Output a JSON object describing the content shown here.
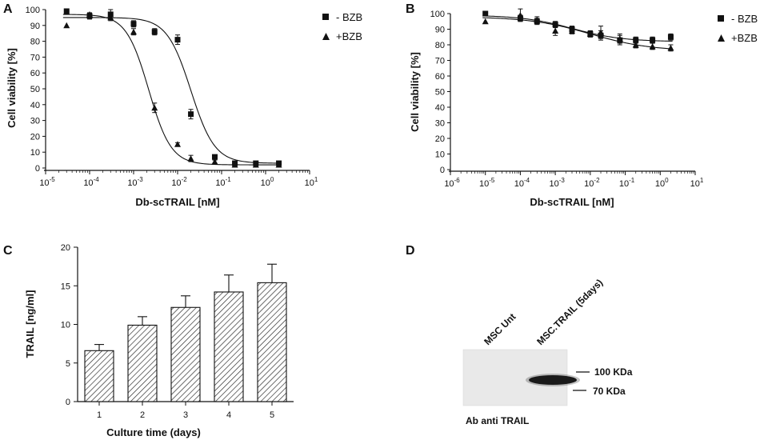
{
  "panels": {
    "A": {
      "letter": "A"
    },
    "B": {
      "letter": "B"
    },
    "C": {
      "letter": "C"
    },
    "D": {
      "letter": "D"
    }
  },
  "chart_data": [
    {
      "id": "A",
      "type": "scatter",
      "xscale": "log",
      "xlabel": "Db-scTRAIL [nM]",
      "ylabel": "Cell viability [%]",
      "xlim_exp": [
        -5,
        1
      ],
      "xticks": [
        {
          "base": "10",
          "exp": "-5"
        },
        {
          "base": "10",
          "exp": "-4"
        },
        {
          "base": "10",
          "exp": "-3"
        },
        {
          "base": "10",
          "exp": "-2"
        },
        {
          "base": "10",
          "exp": "-1"
        },
        {
          "base": "10",
          "exp": "0"
        },
        {
          "base": "10",
          "exp": "1"
        }
      ],
      "ylim": [
        0,
        100
      ],
      "yticks": [
        "0",
        "10",
        "20",
        "30",
        "40",
        "50",
        "60",
        "70",
        "80",
        "90",
        "100"
      ],
      "series": [
        {
          "name": "- BZB",
          "marker": "square",
          "x": [
            3e-05,
            0.0001,
            0.0003,
            0.001,
            0.003,
            0.01,
            0.02,
            0.07,
            0.2,
            0.6,
            2
          ],
          "y": [
            99,
            96,
            97,
            91,
            86,
            81,
            34,
            7,
            3,
            3,
            3
          ],
          "err": [
            1,
            2,
            3,
            2,
            2,
            3,
            3,
            1,
            1,
            1,
            1
          ],
          "fit": {
            "top": 95,
            "bottom": 3,
            "ic50": 0.02,
            "hill": 1.6
          }
        },
        {
          "name": "+BZB",
          "marker": "triangle",
          "x": [
            3e-05,
            0.0001,
            0.0003,
            0.001,
            0.003,
            0.01,
            0.02,
            0.07,
            0.2,
            0.6,
            2
          ],
          "y": [
            90,
            97,
            95,
            86,
            38,
            15,
            6,
            4,
            2,
            2,
            2
          ],
          "err": [
            0,
            1,
            2,
            2,
            3,
            1,
            2,
            1,
            1,
            1,
            1
          ],
          "fit": {
            "top": 97,
            "bottom": 2,
            "ic50": 0.0022,
            "hill": 1.7
          }
        }
      ]
    },
    {
      "id": "B",
      "type": "scatter",
      "xscale": "log",
      "xlabel": "Db-scTRAIL [nM]",
      "ylabel": "Cell viability [%]",
      "xlim_exp": [
        -6,
        1
      ],
      "xticks": [
        {
          "base": "10",
          "exp": "-6"
        },
        {
          "base": "10",
          "exp": "-5"
        },
        {
          "base": "10",
          "exp": "-4"
        },
        {
          "base": "10",
          "exp": "-3"
        },
        {
          "base": "10",
          "exp": "-2"
        },
        {
          "base": "10",
          "exp": "-1"
        },
        {
          "base": "10",
          "exp": "0"
        },
        {
          "base": "10",
          "exp": "1"
        }
      ],
      "ylim": [
        0,
        100
      ],
      "yticks": [
        "0",
        "10",
        "20",
        "30",
        "40",
        "50",
        "60",
        "70",
        "80",
        "90",
        "100"
      ],
      "series": [
        {
          "name": "- BZB",
          "marker": "square",
          "x": [
            1e-05,
            0.0001,
            0.0003,
            0.001,
            0.003,
            0.01,
            0.02,
            0.07,
            0.2,
            0.6,
            2
          ],
          "y": [
            100,
            97,
            95,
            93,
            90,
            87,
            86,
            83,
            83,
            83,
            85
          ],
          "err": [
            1,
            2,
            2,
            2,
            2,
            2,
            3,
            3,
            2,
            2,
            2
          ],
          "fit": {
            "top": 99,
            "bottom": 82,
            "ic50": 0.003,
            "hill": 0.6
          }
        },
        {
          "name": "+BZB",
          "marker": "triangle",
          "x": [
            1e-05,
            0.0001,
            0.0003,
            0.001,
            0.003,
            0.01,
            0.02,
            0.07,
            0.2,
            0.6,
            2
          ],
          "y": [
            95,
            99,
            96,
            89,
            89,
            87,
            88,
            84,
            80,
            79,
            78
          ],
          "err": [
            0,
            4,
            2,
            3,
            2,
            2,
            4,
            3,
            2,
            2,
            2
          ],
          "fit": {
            "top": 98,
            "bottom": 76,
            "ic50": 0.01,
            "hill": 0.5
          }
        }
      ]
    },
    {
      "id": "C",
      "type": "bar",
      "xlabel": "Culture time (days)",
      "ylabel": "TRAIL [ng/ml]",
      "categories": [
        "1",
        "2",
        "3",
        "4",
        "5"
      ],
      "values": [
        6.6,
        9.9,
        12.2,
        14.2,
        15.4
      ],
      "errors": [
        0.8,
        1.1,
        1.5,
        2.2,
        2.4
      ],
      "ylim": [
        0,
        20
      ],
      "yticks": [
        "0",
        "5",
        "10",
        "15",
        "20"
      ]
    }
  ],
  "blot": {
    "lane_labels": [
      "MSC Unt",
      "MSC.TRAIL (5days)"
    ],
    "markers": [
      "100 KDa",
      "70 KDa"
    ],
    "caption": "Ab anti TRAIL"
  }
}
